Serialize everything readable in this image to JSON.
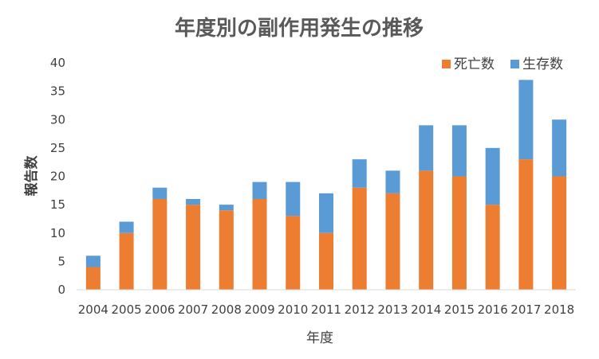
{
  "chart_data": {
    "type": "bar",
    "stacked": true,
    "title": "年度別の副作用発生の推移",
    "xlabel": "年度",
    "ylabel": "報告数",
    "categories": [
      "2004",
      "2005",
      "2006",
      "2007",
      "2008",
      "2009",
      "2010",
      "2011",
      "2012",
      "2013",
      "2014",
      "2015",
      "2016",
      "2017",
      "2018"
    ],
    "series": [
      {
        "name": "死亡数",
        "color": "#ED7D31",
        "values": [
          4,
          10,
          16,
          15,
          14,
          16,
          13,
          10,
          18,
          17,
          21,
          20,
          15,
          23,
          20
        ]
      },
      {
        "name": "生存数",
        "color": "#5B9BD5",
        "values": [
          2,
          2,
          2,
          1,
          1,
          3,
          6,
          7,
          5,
          4,
          8,
          9,
          10,
          14,
          10
        ]
      }
    ],
    "ylim": [
      0,
      40
    ],
    "yticks": [
      0,
      5,
      10,
      15,
      20,
      25,
      30,
      35,
      40
    ],
    "grid": false,
    "legend_position": "top-right"
  }
}
